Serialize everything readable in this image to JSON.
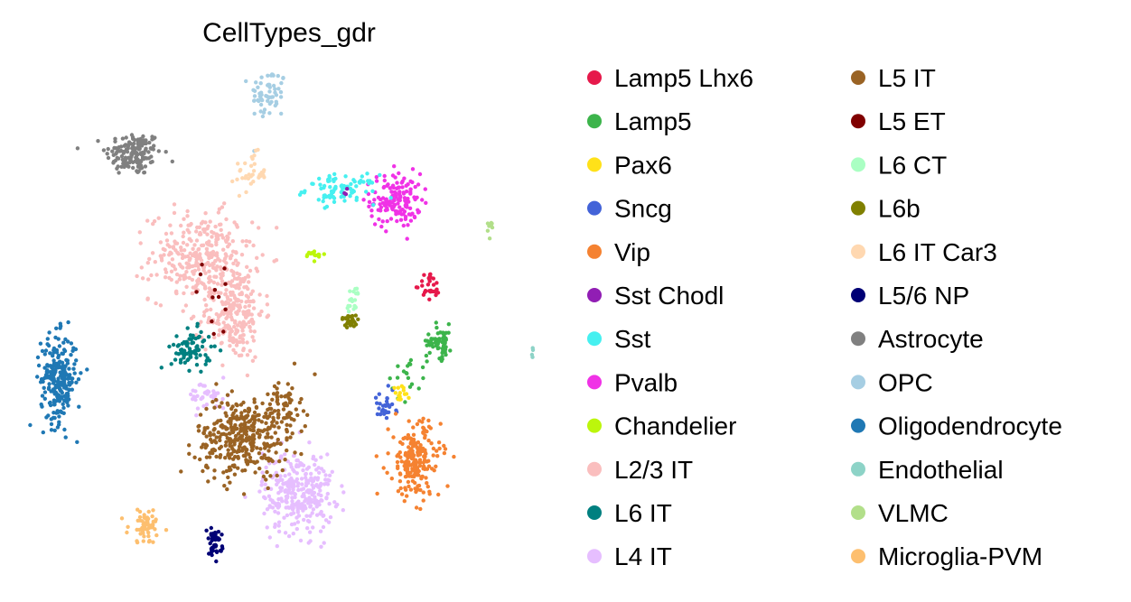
{
  "chart_data": {
    "type": "scatter",
    "title": "CellTypes_gdr",
    "xlabel": "",
    "ylabel": "",
    "axes_visible": false,
    "grid": false,
    "legend_placement": "right, two columns",
    "xlim": [
      0,
      20
    ],
    "ylim": [
      0,
      20
    ],
    "legend": [
      {
        "label": "Lamp5 Lhx6",
        "color": "#e6194b"
      },
      {
        "label": "Lamp5",
        "color": "#3cb44b"
      },
      {
        "label": "Pax6",
        "color": "#ffe119"
      },
      {
        "label": "Sncg",
        "color": "#4363d8"
      },
      {
        "label": "Vip",
        "color": "#f58231"
      },
      {
        "label": "Sst Chodl",
        "color": "#911eb4"
      },
      {
        "label": "Sst",
        "color": "#46f0f0"
      },
      {
        "label": "Pvalb",
        "color": "#f032e6"
      },
      {
        "label": "Chandelier",
        "color": "#bcf60c"
      },
      {
        "label": "L2/3 IT",
        "color": "#fabebe"
      },
      {
        "label": "L6 IT",
        "color": "#008080"
      },
      {
        "label": "L4 IT",
        "color": "#e6beff"
      },
      {
        "label": "L5 IT",
        "color": "#9a6324"
      },
      {
        "label": "L5 ET",
        "color": "#800000"
      },
      {
        "label": "L6 CT",
        "color": "#aaffc3"
      },
      {
        "label": "L6b",
        "color": "#808000"
      },
      {
        "label": "L6 IT Car3",
        "color": "#ffd8b1"
      },
      {
        "label": "L5/6 NP",
        "color": "#000075"
      },
      {
        "label": "Astrocyte",
        "color": "#808080"
      },
      {
        "label": "OPC",
        "color": "#a6cee3"
      },
      {
        "label": "Oligodendrocyte",
        "color": "#1f78b4"
      },
      {
        "label": "Endothelial",
        "color": "#8dd3c7"
      },
      {
        "label": "VLMC",
        "color": "#b2df8a"
      },
      {
        "label": "Microglia-PVM",
        "color": "#fdbf6f"
      }
    ],
    "clusters": [
      {
        "label": "Astrocyte",
        "center": [
          3.86,
          16.85
        ],
        "spread": [
          0.55,
          0.45
        ],
        "n": 150
      },
      {
        "label": "OPC",
        "center": [
          9.18,
          19.26
        ],
        "spread": [
          0.36,
          0.55
        ],
        "n": 60
      },
      {
        "label": "L6 IT Car3",
        "center": [
          8.5,
          16.04
        ],
        "spread": [
          0.3,
          0.4
        ],
        "n": 35
      },
      {
        "label": "Pvalb",
        "center": [
          14.21,
          14.93
        ],
        "spread": [
          0.5,
          0.55
        ],
        "n": 150
      },
      {
        "label": "Sst",
        "center": [
          12.07,
          15.37
        ],
        "spread": [
          0.7,
          0.3
        ],
        "n": 90
      },
      {
        "label": "Sst Chodl",
        "center": [
          12.3,
          15.2
        ],
        "spread": [
          0.1,
          0.1
        ],
        "n": 3
      },
      {
        "label": "VLMC",
        "center": [
          17.96,
          13.7
        ],
        "spread": [
          0.1,
          0.2
        ],
        "n": 8
      },
      {
        "label": "Chandelier",
        "center": [
          11.0,
          12.7
        ],
        "spread": [
          0.2,
          0.1
        ],
        "n": 15
      },
      {
        "label": "L2/3 IT",
        "center": [
          6.5,
          12.6
        ],
        "spread": [
          1.0,
          0.9
        ],
        "n": 300
      },
      {
        "label": "L2/3 IT",
        "center": [
          7.8,
          10.37
        ],
        "spread": [
          0.6,
          1.0
        ],
        "n": 250
      },
      {
        "label": "L5 ET",
        "center": [
          7.14,
          10.9
        ],
        "spread": [
          0.6,
          0.9
        ],
        "n": 12
      },
      {
        "label": "Lamp5 Lhx6",
        "center": [
          15.57,
          11.4
        ],
        "spread": [
          0.2,
          0.3
        ],
        "n": 30
      },
      {
        "label": "L6 CT",
        "center": [
          12.57,
          10.8
        ],
        "spread": [
          0.15,
          0.3
        ],
        "n": 20
      },
      {
        "label": "L6b",
        "center": [
          12.4,
          10.0
        ],
        "spread": [
          0.2,
          0.15
        ],
        "n": 25
      },
      {
        "label": "Lamp5",
        "center": [
          15.96,
          9.15
        ],
        "spread": [
          0.25,
          0.35
        ],
        "n": 60
      },
      {
        "label": "Lamp5",
        "center": [
          14.64,
          7.78
        ],
        "spread": [
          0.4,
          0.5
        ],
        "n": 20
      },
      {
        "label": "Endothelial",
        "center": [
          19.64,
          8.7
        ],
        "spread": [
          0.05,
          0.1
        ],
        "n": 4
      },
      {
        "label": "Oligodendrocyte",
        "center": [
          0.89,
          7.6
        ],
        "spread": [
          0.35,
          0.9
        ],
        "n": 250
      },
      {
        "label": "L6 IT",
        "center": [
          6.14,
          8.8
        ],
        "spread": [
          0.4,
          0.4
        ],
        "n": 80
      },
      {
        "label": "L4 IT",
        "center": [
          6.8,
          6.9
        ],
        "spread": [
          0.4,
          0.3
        ],
        "n": 40
      },
      {
        "label": "L4 IT",
        "center": [
          10.36,
          2.96
        ],
        "spread": [
          0.7,
          0.85
        ],
        "n": 300
      },
      {
        "label": "L5 IT",
        "center": [
          8.14,
          5.19
        ],
        "spread": [
          0.9,
          0.8
        ],
        "n": 350
      },
      {
        "label": "L5 IT",
        "center": [
          9.75,
          6.48
        ],
        "spread": [
          0.35,
          0.6
        ],
        "n": 70
      },
      {
        "label": "Sncg",
        "center": [
          13.75,
          6.48
        ],
        "spread": [
          0.25,
          0.3
        ],
        "n": 30
      },
      {
        "label": "Pax6",
        "center": [
          14.39,
          6.85
        ],
        "spread": [
          0.15,
          0.25
        ],
        "n": 15
      },
      {
        "label": "Vip",
        "center": [
          15.0,
          4.26
        ],
        "spread": [
          0.5,
          0.8
        ],
        "n": 200
      },
      {
        "label": "L5/6 NP",
        "center": [
          7.04,
          0.85
        ],
        "spread": [
          0.15,
          0.3
        ],
        "n": 40
      },
      {
        "label": "Microglia-PVM",
        "center": [
          4.36,
          1.6
        ],
        "spread": [
          0.35,
          0.35
        ],
        "n": 60
      }
    ]
  }
}
